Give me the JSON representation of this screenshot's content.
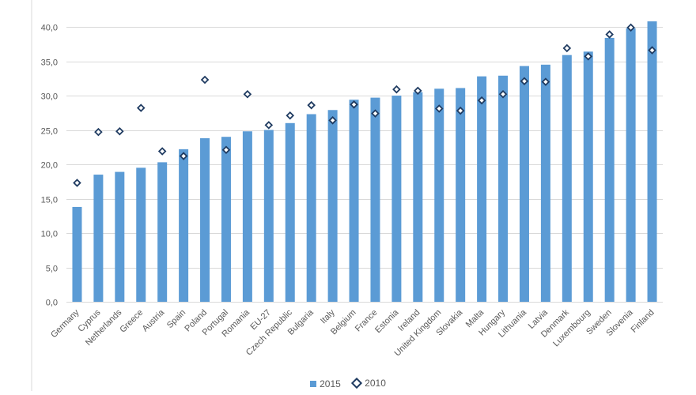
{
  "chart_data": {
    "type": "bar",
    "categories": [
      "Germany",
      "Cyprus",
      "Netherlands",
      "Greece",
      "Austria",
      "Spain",
      "Poland",
      "Portugal",
      "Romania",
      "EU-27",
      "Czech Republic",
      "Bulgaria",
      "Italy",
      "Belgium",
      "France",
      "Estonia",
      "Ireland",
      "United Kingdom",
      "Slovakia",
      "Malta",
      "Hungary",
      "Lithuania",
      "Latvia",
      "Denmark",
      "Luxembourg",
      "Sweden",
      "Slovenia",
      "Finland"
    ],
    "series": [
      {
        "name": "2015",
        "kind": "bar",
        "values": [
          13.8,
          18.5,
          18.9,
          19.5,
          20.3,
          22.2,
          23.8,
          24.0,
          24.8,
          25.0,
          26.0,
          27.3,
          27.9,
          29.4,
          29.7,
          30.0,
          30.5,
          31.0,
          31.1,
          32.8,
          32.9,
          34.3,
          34.5,
          35.9,
          36.4,
          38.4,
          39.8,
          40.8
        ]
      },
      {
        "name": "2010",
        "kind": "marker",
        "values": [
          17.3,
          24.7,
          24.8,
          28.2,
          21.9,
          21.2,
          32.3,
          22.1,
          30.2,
          25.7,
          27.1,
          28.6,
          26.4,
          28.7,
          27.4,
          30.9,
          30.7,
          28.1,
          27.8,
          29.3,
          30.2,
          32.1,
          32.0,
          36.9,
          35.7,
          38.9,
          39.9,
          36.6
        ]
      }
    ],
    "yticks": [
      "0,0",
      "5,0",
      "10,0",
      "15,0",
      "20,0",
      "25,0",
      "30,0",
      "35,0",
      "40,0"
    ],
    "ylim": [
      0,
      40
    ],
    "title": "",
    "xlabel": "",
    "ylabel": "",
    "grid": true,
    "legend_position": "bottom",
    "colors": {
      "bar": "#5B9BD5",
      "marker_edge": "#1F3B61",
      "grid": "#D9D9D9",
      "text": "#595959"
    }
  },
  "legend": {
    "bar_label": "2015",
    "marker_label": "2010"
  }
}
